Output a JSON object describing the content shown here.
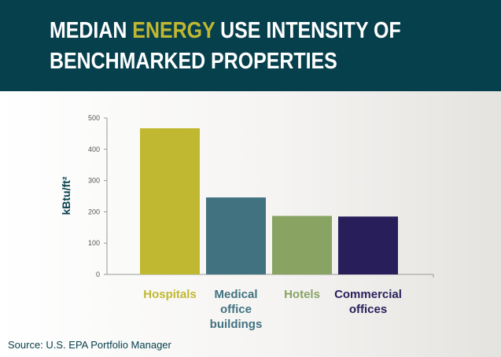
{
  "header": {
    "title_part1": "MEDIAN ",
    "title_highlight": "ENERGY",
    "title_part2": " USE INTENSITY OF",
    "title_line2": "BENCHMARKED PROPERTIES"
  },
  "chart_data": {
    "type": "bar",
    "title": "MEDIAN ENERGY USE INTENSITY OF BENCHMARKED PROPERTIES",
    "ylabel": "kBtu/ft²",
    "xlabel": "",
    "ylim": [
      0,
      500
    ],
    "yticks": [
      "0",
      "100",
      "200",
      "300",
      "400",
      "500"
    ],
    "grid": false,
    "categories": [
      {
        "label_lines": [
          "Hospitals"
        ],
        "value": 467,
        "color": "#c1b831"
      },
      {
        "label_lines": [
          "Medical",
          "office",
          "buildings"
        ],
        "value": 246,
        "color": "#417280"
      },
      {
        "label_lines": [
          "Hotels"
        ],
        "value": 187,
        "color": "#88a362"
      },
      {
        "label_lines": [
          "Commercial",
          "offices"
        ],
        "value": 185,
        "color": "#281f5a"
      }
    ]
  },
  "footer": {
    "source": "Source: U.S. EPA Portfolio Manager"
  }
}
